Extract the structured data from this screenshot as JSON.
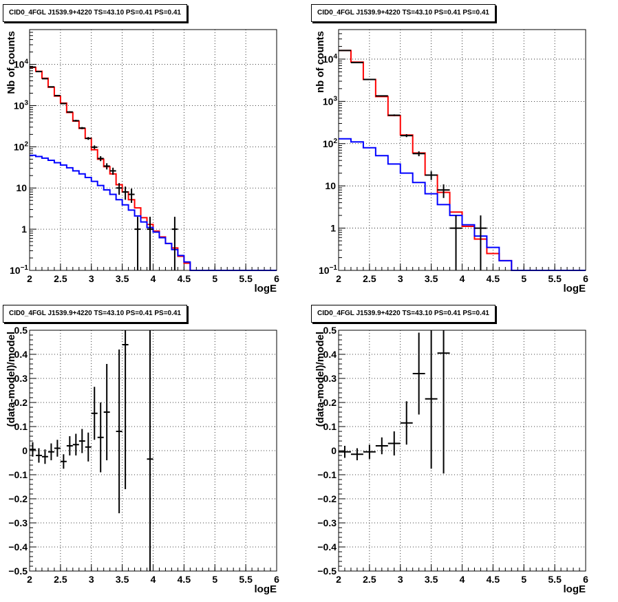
{
  "panel_titles": [
    "CID0_4FGL J1539.9+4220 TS=43.10 PS=0.41 PS=0.41",
    "CID0_4FGL J1539.9+4220 TS=43.10 PS=0.41 PS=0.41",
    "CID0_4FGL J1539.9+4220 TS=43.10 PS=0.41 PS=0.41",
    "CID0_4FGL J1539.9+4220 TS=43.10 PS=0.41 PS=0.41"
  ],
  "colors": {
    "total_model": "#ff0000",
    "component_model": "#0000ff",
    "data": "#000000",
    "grid": "#000000"
  },
  "chart_data": [
    {
      "type": "line",
      "title": "CID0_4FGL J1539.9+4220 TS=43.10 PS=0.41 PS=0.41",
      "xlabel": "logE",
      "ylabel": "Nb of counts",
      "xlim": [
        2,
        6
      ],
      "ylim": [
        0.1,
        70000
      ],
      "yscale": "log",
      "grid": true,
      "x_ticks": [
        "2",
        "2.5",
        "3",
        "3.5",
        "4",
        "4.5",
        "5",
        "5.5",
        "6"
      ],
      "y_ticks": [
        "10^-1",
        "1",
        "10",
        "10^2",
        "10^3",
        "10^4"
      ],
      "bin_edges": [
        2,
        2.1,
        2.2,
        2.3,
        2.4,
        2.5,
        2.6,
        2.7,
        2.8,
        2.9,
        3.0,
        3.1,
        3.2,
        3.3,
        3.4,
        3.5,
        3.6,
        3.7,
        3.8,
        3.9,
        4.0,
        4.1,
        4.2,
        4.3,
        4.4,
        4.5,
        4.6,
        4.7,
        4.8,
        4.9,
        5.0,
        5.1,
        5.2,
        5.3,
        5.4,
        5.5,
        5.6,
        5.7,
        5.8,
        5.9,
        6.0
      ],
      "series": [
        {
          "values": [
            8500,
            6800,
            4600,
            2800,
            1700,
            1150,
            680,
            420,
            280,
            160,
            85,
            50,
            33,
            22,
            12,
            8,
            5.2,
            3.3,
            1.9,
            1.3,
            0.9,
            0.65,
            0.45,
            0.35,
            0.22,
            0.15,
            0.1,
            0.1,
            0.1,
            0.1,
            0.1,
            0.1,
            0.1,
            0.1,
            0.1,
            0.1,
            0.1,
            0.1,
            0.1,
            0.1
          ]
        },
        {
          "values": [
            62,
            58,
            53,
            47,
            41,
            36,
            31,
            26,
            22,
            18,
            14.5,
            11.5,
            9,
            7,
            5.2,
            3.9,
            2.9,
            2.1,
            1.5,
            1.1,
            0.85,
            0.62,
            0.45,
            0.32,
            0.23,
            0.16,
            0.1,
            0.1,
            0.1,
            0.1,
            0.1,
            0.1,
            0.1,
            0.1,
            0.1,
            0.1,
            0.1,
            0.1,
            0.1,
            0.1
          ]
        }
      ],
      "points": [
        {
          "x": 2.05,
          "y": 8600
        },
        {
          "x": 2.15,
          "y": 6700
        },
        {
          "x": 2.25,
          "y": 4500
        },
        {
          "x": 2.35,
          "y": 2850
        },
        {
          "x": 2.45,
          "y": 1750
        },
        {
          "x": 2.55,
          "y": 1120
        },
        {
          "x": 2.65,
          "y": 700
        },
        {
          "x": 2.75,
          "y": 430
        },
        {
          "x": 2.85,
          "y": 285
        },
        {
          "x": 2.95,
          "y": 160
        },
        {
          "x": 3.05,
          "y": 98
        },
        {
          "x": 3.15,
          "y": 52
        },
        {
          "x": 3.25,
          "y": 34
        },
        {
          "x": 3.35,
          "y": 26
        },
        {
          "x": 3.45,
          "y": 10
        },
        {
          "x": 3.55,
          "y": 8
        },
        {
          "x": 3.65,
          "y": 7
        },
        {
          "x": 3.75,
          "y": 1
        },
        {
          "x": 3.95,
          "y": 1
        },
        {
          "x": 4.35,
          "y": 1
        }
      ]
    },
    {
      "type": "line",
      "title": "CID0_4FGL J1539.9+4220 TS=43.10 PS=0.41 PS=0.41",
      "xlabel": "logE",
      "ylabel": "nb of counts",
      "xlim": [
        2,
        6
      ],
      "ylim": [
        0.1,
        50000
      ],
      "yscale": "log",
      "grid": true,
      "x_ticks": [
        "2",
        "2.5",
        "3",
        "3.5",
        "4",
        "4.5",
        "5",
        "5.5",
        "6"
      ],
      "y_ticks": [
        "10^-1",
        "1",
        "10",
        "10^2",
        "10^3",
        "10^4"
      ],
      "bin_edges": [
        2,
        2.2,
        2.4,
        2.6,
        2.8,
        3.0,
        3.2,
        3.4,
        3.6,
        3.8,
        4.0,
        4.2,
        4.4,
        4.6,
        4.8,
        5.0,
        5.2,
        5.4,
        5.6,
        5.8,
        6.0
      ],
      "series": [
        {
          "values": [
            16000,
            8500,
            3300,
            1300,
            460,
            160,
            60,
            18,
            7,
            2.4,
            1.1,
            0.55,
            0.25,
            0.17,
            0.1,
            0.1,
            0.1,
            0.1,
            0.1,
            0.1
          ]
        },
        {
          "values": [
            130,
            110,
            80,
            52,
            33,
            20,
            12,
            6.5,
            3.6,
            2,
            1.2,
            0.65,
            0.35,
            0.17,
            0.1,
            0.1,
            0.1,
            0.1,
            0.1,
            0.1
          ]
        }
      ],
      "points": [
        {
          "x": 2.1,
          "y": 16000
        },
        {
          "x": 2.3,
          "y": 8300
        },
        {
          "x": 2.5,
          "y": 3300
        },
        {
          "x": 2.7,
          "y": 1350
        },
        {
          "x": 2.9,
          "y": 470
        },
        {
          "x": 3.1,
          "y": 155
        },
        {
          "x": 3.3,
          "y": 58
        },
        {
          "x": 3.5,
          "y": 18
        },
        {
          "x": 3.7,
          "y": 8
        },
        {
          "x": 3.9,
          "y": 1
        },
        {
          "x": 4.3,
          "y": 1
        }
      ]
    },
    {
      "type": "scatter",
      "title": "CID0_4FGL J1539.9+4220 TS=43.10 PS=0.41 PS=0.41",
      "xlabel": "logE",
      "ylabel": "(data-model)/model",
      "xlim": [
        2,
        6
      ],
      "ylim": [
        -0.5,
        0.5
      ],
      "grid": true,
      "x_ticks": [
        "2",
        "2.5",
        "3",
        "3.5",
        "4",
        "4.5",
        "5",
        "5.5",
        "6"
      ],
      "y_ticks": [
        "-0.5",
        "-0.4",
        "-0.3",
        "-0.2",
        "-0.1",
        "0",
        "0.1",
        "0.2",
        "0.3",
        "0.4",
        "0.5"
      ],
      "points": [
        {
          "x": 2.05,
          "y": 0.005,
          "err": 0.03
        },
        {
          "x": 2.15,
          "y": -0.02,
          "err": 0.03
        },
        {
          "x": 2.25,
          "y": -0.025,
          "err": 0.03
        },
        {
          "x": 2.35,
          "y": -0.005,
          "err": 0.035
        },
        {
          "x": 2.45,
          "y": 0.01,
          "err": 0.035
        },
        {
          "x": 2.55,
          "y": -0.045,
          "err": 0.03
        },
        {
          "x": 2.65,
          "y": 0.02,
          "err": 0.04
        },
        {
          "x": 2.75,
          "y": 0.025,
          "err": 0.045
        },
        {
          "x": 2.85,
          "y": 0.04,
          "err": 0.05
        },
        {
          "x": 2.95,
          "y": 0.015,
          "err": 0.06
        },
        {
          "x": 3.05,
          "y": 0.155,
          "err": 0.11
        },
        {
          "x": 3.15,
          "y": 0.055,
          "err": 0.145
        },
        {
          "x": 3.25,
          "y": 0.16,
          "err": 0.2
        },
        {
          "x": 3.45,
          "y": 0.08,
          "err": 0.34
        },
        {
          "x": 3.55,
          "y": 0.44,
          "err": 0.6
        },
        {
          "x": 3.95,
          "y": -0.035,
          "err": 1.0
        }
      ]
    },
    {
      "type": "scatter",
      "title": "CID0_4FGL J1539.9+4220 TS=43.10 PS=0.41 PS=0.41",
      "xlabel": "logE",
      "ylabel": "(data-model)/model",
      "xlim": [
        2,
        6
      ],
      "ylim": [
        -0.5,
        0.5
      ],
      "grid": true,
      "x_ticks": [
        "2",
        "2.5",
        "3",
        "3.5",
        "4",
        "4.5",
        "5",
        "5.5",
        "6"
      ],
      "y_ticks": [
        "-0.5",
        "-0.4",
        "-0.3",
        "-0.2",
        "-0.1",
        "0",
        "0.1",
        "0.2",
        "0.3",
        "0.4",
        "0.5"
      ],
      "points": [
        {
          "x": 2.1,
          "y": -0.005,
          "err": 0.025
        },
        {
          "x": 2.3,
          "y": -0.015,
          "err": 0.025
        },
        {
          "x": 2.5,
          "y": -0.005,
          "err": 0.03
        },
        {
          "x": 2.7,
          "y": 0.02,
          "err": 0.035
        },
        {
          "x": 2.9,
          "y": 0.03,
          "err": 0.05
        },
        {
          "x": 3.1,
          "y": 0.115,
          "err": 0.09
        },
        {
          "x": 3.3,
          "y": 0.32,
          "err": 0.17
        },
        {
          "x": 3.5,
          "y": 0.215,
          "err": 0.29
        },
        {
          "x": 3.7,
          "y": 0.405,
          "err": 0.5
        }
      ]
    }
  ]
}
